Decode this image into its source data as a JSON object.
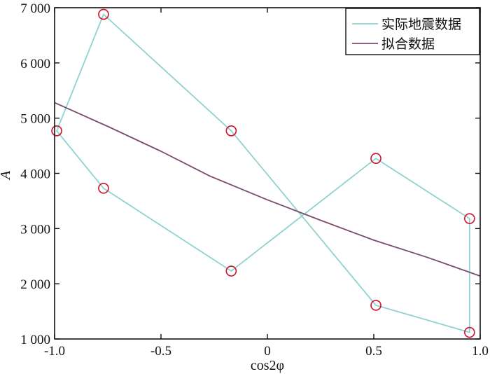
{
  "chart_data": {
    "type": "line",
    "xlabel": "cos2φ",
    "ylabel": "A",
    "xlim": [
      -1.0,
      1.0
    ],
    "ylim": [
      1000,
      7000
    ],
    "x_ticks": [
      -1.0,
      -0.5,
      0,
      0.5,
      1.0
    ],
    "x_tick_labels": [
      "-1.0",
      "-0.5",
      "0",
      "0.5",
      "1.0"
    ],
    "y_ticks": [
      1000,
      2000,
      3000,
      4000,
      5000,
      6000,
      7000
    ],
    "y_tick_labels": [
      "1 000",
      "2 000",
      "3 000",
      "4 000",
      "5 000",
      "6 000",
      "7 000"
    ],
    "grid": false,
    "legend_position": "top-right",
    "series": [
      {
        "name": "实际地震数据",
        "color": "#8fd3d0",
        "marker": "circle",
        "marker_color": "#d0102a",
        "points": [
          {
            "x": -0.77,
            "y": 3730
          },
          {
            "x": -0.17,
            "y": 2230
          },
          {
            "x": 0.51,
            "y": 4270
          },
          {
            "x": 0.95,
            "y": 3180
          },
          {
            "x": 0.95,
            "y": 1120
          },
          {
            "x": 0.51,
            "y": 1610
          },
          {
            "x": -0.17,
            "y": 4770
          },
          {
            "x": -0.77,
            "y": 6880
          },
          {
            "x": -0.99,
            "y": 4770
          }
        ],
        "closed": true
      },
      {
        "name": "拟合数据",
        "color": "#7a4b6e",
        "marker": "none",
        "points": [
          {
            "x": -1.0,
            "y": 5280
          },
          {
            "x": -0.75,
            "y": 4850
          },
          {
            "x": -0.5,
            "y": 4400
          },
          {
            "x": -0.27,
            "y": 3950
          },
          {
            "x": 0.0,
            "y": 3520
          },
          {
            "x": 0.25,
            "y": 3150
          },
          {
            "x": 0.5,
            "y": 2790
          },
          {
            "x": 0.75,
            "y": 2480
          },
          {
            "x": 1.0,
            "y": 2140
          }
        ],
        "closed": false
      }
    ]
  }
}
